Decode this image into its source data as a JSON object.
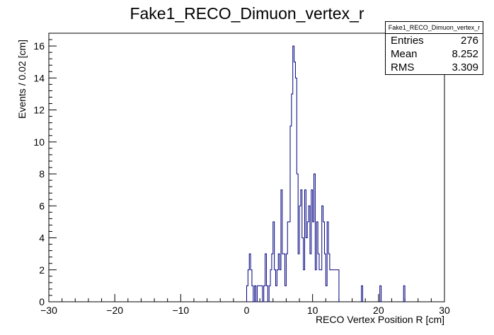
{
  "chart_data": {
    "type": "bar",
    "style": "step-histogram",
    "title": "Fake1_RECO_Dimuon_vertex_r",
    "xlabel": "RECO Vertex Position R [cm]",
    "ylabel": "Events / 0.02 [cm]",
    "xlim": [
      -30,
      30
    ],
    "ylim": [
      0,
      16.8
    ],
    "xticks": [
      -30,
      -20,
      -10,
      0,
      10,
      20,
      30
    ],
    "yticks": [
      0,
      2,
      4,
      6,
      8,
      10,
      12,
      14,
      16
    ],
    "line_color": "#000080",
    "stats": {
      "title": "Fake1_RECO_Dimuon_vertex_r",
      "rows": [
        {
          "label": "Entries",
          "value": "276"
        },
        {
          "label": "Mean",
          "value": "8.252"
        },
        {
          "label": "RMS",
          "value": "3.309"
        }
      ]
    },
    "bins": [
      [
        0.0,
        1
      ],
      [
        0.2,
        2
      ],
      [
        0.4,
        3
      ],
      [
        0.6,
        2
      ],
      [
        0.8,
        1
      ],
      [
        1.0,
        0
      ],
      [
        1.2,
        1
      ],
      [
        1.4,
        0
      ],
      [
        1.6,
        1
      ],
      [
        1.8,
        1
      ],
      [
        2.0,
        1
      ],
      [
        2.2,
        1
      ],
      [
        2.4,
        0
      ],
      [
        2.6,
        1
      ],
      [
        2.8,
        3
      ],
      [
        3.0,
        1
      ],
      [
        3.2,
        0
      ],
      [
        3.4,
        1
      ],
      [
        3.6,
        2
      ],
      [
        3.8,
        3
      ],
      [
        4.0,
        5
      ],
      [
        4.2,
        2
      ],
      [
        4.4,
        1
      ],
      [
        4.6,
        2
      ],
      [
        4.8,
        3
      ],
      [
        5.0,
        2
      ],
      [
        5.2,
        7
      ],
      [
        5.4,
        3
      ],
      [
        5.6,
        3
      ],
      [
        5.8,
        1
      ],
      [
        6.0,
        3
      ],
      [
        6.2,
        5
      ],
      [
        6.4,
        5
      ],
      [
        6.6,
        11
      ],
      [
        6.8,
        13
      ],
      [
        7.0,
        16
      ],
      [
        7.2,
        15
      ],
      [
        7.4,
        14
      ],
      [
        7.6,
        8
      ],
      [
        7.8,
        3
      ],
      [
        8.0,
        6
      ],
      [
        8.2,
        7
      ],
      [
        8.4,
        4
      ],
      [
        8.6,
        2
      ],
      [
        8.8,
        7
      ],
      [
        9.0,
        4
      ],
      [
        9.2,
        5
      ],
      [
        9.4,
        6
      ],
      [
        9.6,
        3
      ],
      [
        9.8,
        7
      ],
      [
        10.0,
        5
      ],
      [
        10.2,
        8
      ],
      [
        10.4,
        2
      ],
      [
        10.6,
        5
      ],
      [
        10.8,
        3
      ],
      [
        11.0,
        2
      ],
      [
        11.2,
        2
      ],
      [
        11.4,
        6
      ],
      [
        11.6,
        5
      ],
      [
        11.8,
        3
      ],
      [
        12.0,
        1
      ],
      [
        12.2,
        5
      ],
      [
        12.4,
        3
      ],
      [
        12.6,
        2
      ],
      [
        12.8,
        2
      ],
      [
        13.0,
        2
      ],
      [
        13.2,
        2
      ],
      [
        13.4,
        2
      ],
      [
        13.6,
        2
      ],
      [
        13.8,
        2
      ],
      [
        14.0,
        0
      ],
      [
        17.4,
        1
      ],
      [
        17.6,
        0
      ],
      [
        20.2,
        1
      ],
      [
        20.4,
        0
      ],
      [
        23.8,
        1
      ],
      [
        24.0,
        0
      ]
    ]
  }
}
